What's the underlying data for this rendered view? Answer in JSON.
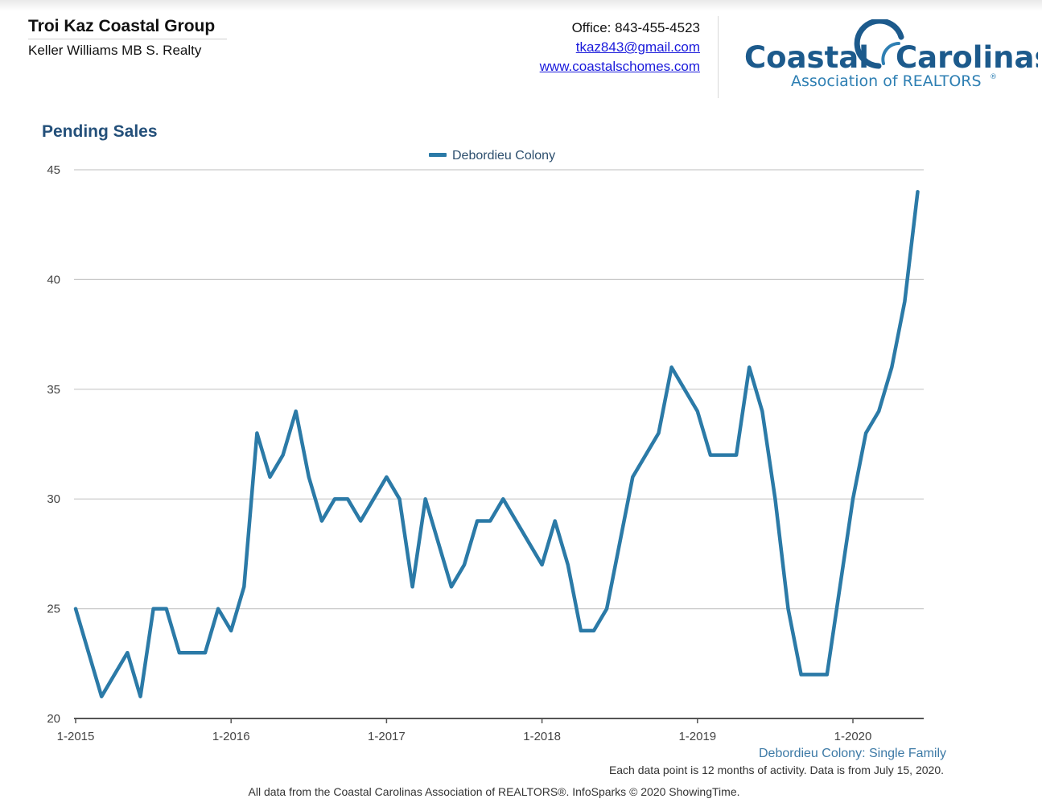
{
  "header": {
    "agent_name": "Troi Kaz Coastal Group",
    "brokerage": "Keller Williams MB S. Realty",
    "office": "Office: 843-455-4523",
    "email": "tkaz843@gmail.com",
    "website": "www.coastalschomes.com"
  },
  "logo": {
    "word1": "Coastal",
    "word2": "Carolinas",
    "subtitle": "Association of REALTORS",
    "registered": "®",
    "brand_color": "#1c5a8c",
    "accent_color": "#2e7fb3"
  },
  "footer": {
    "note": "Each data point is 12 months of activity. Data is from July 15, 2020.",
    "source": "All data from the Coastal Carolinas Association of REALTORS®. InfoSparks © 2020 ShowingTime."
  },
  "chart_data": {
    "type": "line",
    "title": "Pending Sales",
    "xlabel": "",
    "ylabel": "",
    "ylim": [
      20,
      45
    ],
    "yticks": [
      20,
      25,
      30,
      35,
      40,
      45
    ],
    "xticks": [
      "1-2015",
      "1-2016",
      "1-2017",
      "1-2018",
      "1-2019",
      "1-2020"
    ],
    "grid": true,
    "legend_position": "top-center",
    "subtitle_right": "Debordieu Colony: Single Family",
    "line_color": "#2b7aa7",
    "series": [
      {
        "name": "Debordieu Colony",
        "start": "1-2015",
        "values": [
          25,
          23,
          21,
          22,
          23,
          21,
          25,
          25,
          23,
          23,
          23,
          25,
          24,
          26,
          33,
          31,
          32,
          34,
          31,
          29,
          30,
          30,
          29,
          30,
          31,
          30,
          26,
          30,
          28,
          26,
          27,
          29,
          29,
          30,
          29,
          28,
          27,
          29,
          27,
          24,
          24,
          25,
          28,
          31,
          32,
          33,
          36,
          35,
          34,
          32,
          32,
          32,
          36,
          34,
          30,
          25,
          22,
          22,
          22,
          26,
          30,
          33,
          34,
          36,
          39,
          44
        ]
      }
    ]
  }
}
